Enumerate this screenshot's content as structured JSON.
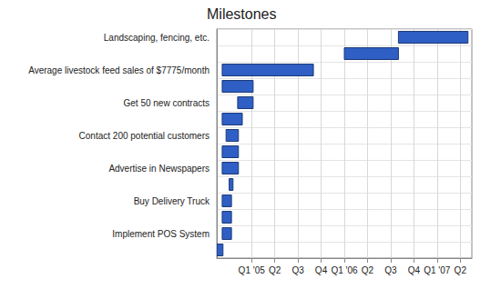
{
  "chart_data": {
    "type": "bar",
    "orientation": "horizontal",
    "title": "Milestones",
    "categories": [
      "Landscaping, fencing, etc.",
      null,
      "Average livestock feed sales of $7775/month",
      null,
      "Get 50 new contracts",
      null,
      "Contact 200 potential customers",
      null,
      "Advertise in Newspapers",
      null,
      "Buy Delivery Truck",
      null,
      "Implement POS System",
      null
    ],
    "start": [
      23.5,
      16.5,
      0.7,
      0.7,
      2.7,
      0.7,
      1.2,
      0.7,
      0.7,
      1.6,
      0.7,
      0.7,
      0.7,
      0
    ],
    "end": [
      32.5,
      23.5,
      12.5,
      4.7,
      4.7,
      3.3,
      2.8,
      2.8,
      2.8,
      2.1,
      1.9,
      1.9,
      1.9,
      0.8
    ],
    "color": "#2f5fc4",
    "xlim": [
      0,
      33
    ],
    "xticks": [
      {
        "value": 4.5,
        "label": "Q1 '05"
      },
      {
        "value": 7.5,
        "label": "Q2"
      },
      {
        "value": 10.5,
        "label": "Q3"
      },
      {
        "value": 13.5,
        "label": "Q4"
      },
      {
        "value": 16.5,
        "label": "Q1 '06"
      },
      {
        "value": 19.5,
        "label": "Q2"
      },
      {
        "value": 22.5,
        "label": "Q3"
      },
      {
        "value": 25.5,
        "label": "Q4"
      },
      {
        "value": 28.5,
        "label": "Q1 '07"
      },
      {
        "value": 31.5,
        "label": "Q2"
      }
    ],
    "grid": true
  }
}
